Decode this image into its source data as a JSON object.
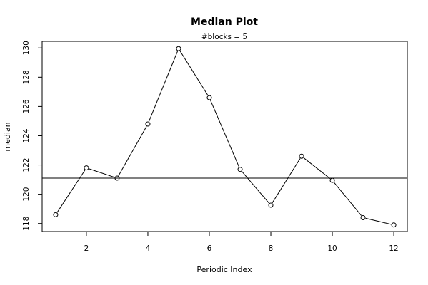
{
  "chart_data": {
    "type": "line",
    "title": "Median Plot",
    "subtitle": "#blocks =  5",
    "xlabel": "Periodic Index",
    "ylabel": "median",
    "x": [
      1,
      2,
      3,
      4,
      5,
      6,
      7,
      8,
      9,
      10,
      11,
      12
    ],
    "series": [
      {
        "values": [
          118.6,
          121.8,
          121.1,
          124.8,
          129.95,
          126.6,
          121.7,
          119.25,
          122.6,
          120.95,
          118.4,
          117.9
        ]
      }
    ],
    "reference_line": 121.1,
    "xlim": [
      0.56,
      12.44
    ],
    "ylim": [
      117.45,
      130.45
    ],
    "x_ticks": [
      "2",
      "4",
      "6",
      "8",
      "10",
      "12"
    ],
    "y_ticks": [
      "118",
      "120",
      "122",
      "124",
      "126",
      "128",
      "130"
    ],
    "grid": false,
    "marker": "open-circle",
    "line_color": "#000000"
  }
}
